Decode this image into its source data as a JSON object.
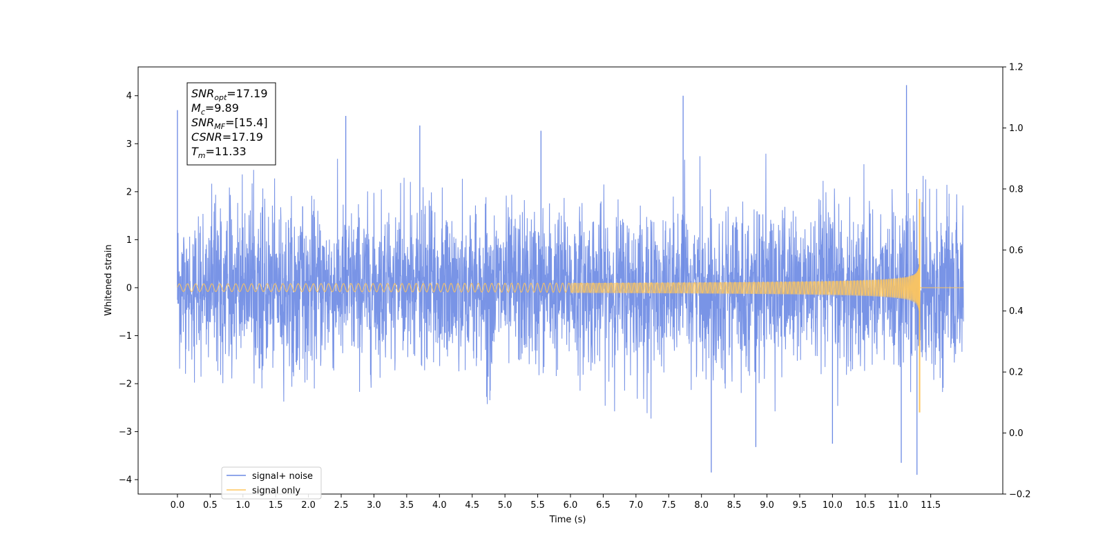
{
  "chart_data": {
    "type": "line",
    "xlabel": "Time (s)",
    "ylabel": "Whitened strain",
    "xlim": [
      -0.6,
      12.6
    ],
    "ylim": [
      -4.3,
      4.6
    ],
    "y2lim": [
      -0.2,
      1.2
    ],
    "x_ticks": [
      "0.0",
      "0.5",
      "1.0",
      "1.5",
      "2.0",
      "2.5",
      "3.0",
      "3.5",
      "4.0",
      "4.5",
      "5.0",
      "5.5",
      "6.0",
      "6.5",
      "7.0",
      "7.5",
      "8.0",
      "8.5",
      "9.0",
      "9.5",
      "10.0",
      "10.5",
      "11.0",
      "11.5"
    ],
    "y_ticks": [
      "4",
      "3",
      "2",
      "1",
      "0",
      "−1",
      "−2",
      "−3",
      "−4"
    ],
    "y2_ticks": [
      "1.2",
      "1.0",
      "0.8",
      "0.6",
      "0.4",
      "0.2",
      "0.0",
      "−0.2"
    ],
    "grid": false,
    "legend_position": "lower-left",
    "series": [
      {
        "name": "signal+ noise",
        "color": "#6a88e3",
        "x_range": [
          0.0,
          12.0
        ],
        "envelope_min": [
          -2.2,
          -2.0,
          -2.1,
          -2.9,
          -3.0,
          -2.4,
          -2.5,
          -2.2,
          -2.3,
          -2.7,
          -3.0,
          -2.5,
          -2.8,
          -2.6,
          -2.9,
          -3.0,
          -2.7,
          -3.2,
          -2.8,
          -2.9,
          -2.6,
          -3.9,
          -3.3,
          -2.9,
          -3.1,
          -2.7,
          -3.2,
          -2.8,
          -2.9,
          -3.6,
          -3.9,
          -2.9
        ],
        "envelope_max": [
          3.7,
          2.6,
          2.8,
          2.6,
          2.9,
          2.5,
          3.6,
          2.6,
          3.4,
          2.4,
          2.5,
          2.5,
          3.3,
          2.6,
          2.5,
          2.6,
          4.0,
          2.9,
          2.7,
          2.8,
          2.7,
          2.9,
          2.6,
          2.9,
          2.5,
          2.8,
          2.5,
          2.6,
          4.2,
          2.9,
          2.6,
          2.5
        ],
        "spikes": [
          {
            "x": 0.0,
            "y": 3.7
          },
          {
            "x": 2.57,
            "y": 3.58
          },
          {
            "x": 3.7,
            "y": 3.38
          },
          {
            "x": 5.55,
            "y": 3.27
          },
          {
            "x": 7.72,
            "y": 4.0
          },
          {
            "x": 11.13,
            "y": 4.22
          },
          {
            "x": 8.15,
            "y": -3.85
          },
          {
            "x": 11.29,
            "y": -3.9
          },
          {
            "x": 11.05,
            "y": -3.65
          },
          {
            "x": 8.83,
            "y": -3.32
          },
          {
            "x": 10.0,
            "y": -3.25
          }
        ]
      },
      {
        "name": "signal only",
        "color": "#ffc65c",
        "x_range": [
          0.0,
          12.0
        ],
        "merger_time": 11.33,
        "amplitude_start": 0.08,
        "amplitude_peak": 1.85,
        "amplitude_min": -2.6
      }
    ],
    "annotation": [
      {
        "main": "SNR",
        "sub": "opt",
        "value": "=17.19"
      },
      {
        "main": "M",
        "sub": "c",
        "value": "=9.89"
      },
      {
        "main": "SNR",
        "sub": "MF",
        "value": "=[15.4]"
      },
      {
        "main": "CSNR",
        "sub": "",
        "value": "=17.19"
      },
      {
        "main": "T",
        "sub": "m",
        "value": "=11.33"
      }
    ]
  }
}
